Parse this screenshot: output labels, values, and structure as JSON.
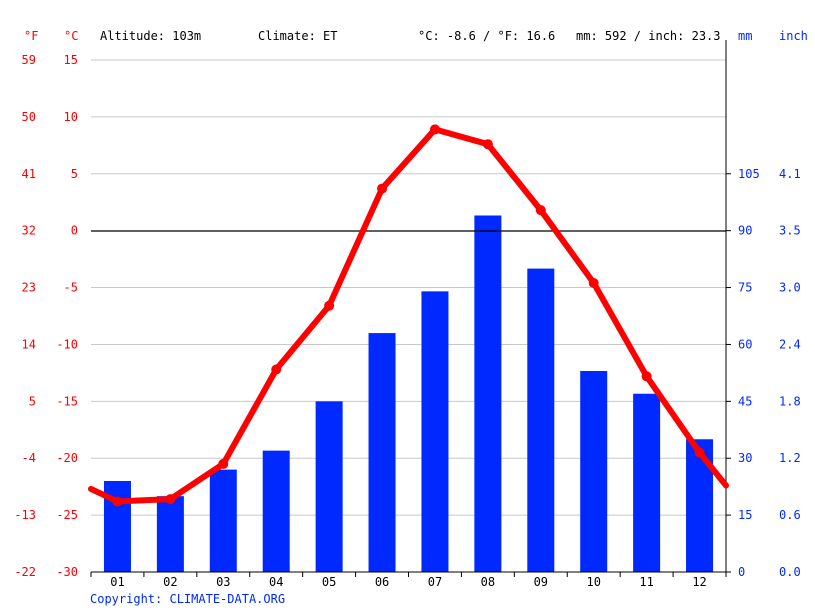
{
  "header": {
    "unit_f": "°F",
    "unit_c": "°C",
    "altitude": "Altitude: 103m",
    "climate": "Climate: ET",
    "avg_temp": "°C: -8.6 / °F: 16.6",
    "precip_total": "mm: 592 / inch: 23.3",
    "unit_mm": "mm",
    "unit_inch": "inch"
  },
  "footer": {
    "copyright": "Copyright: CLIMATE-DATA.ORG"
  },
  "colors": {
    "temp": "#ff0000",
    "precip": "#0029ff",
    "axis_precip_text": "#0029ff",
    "axis_temp_text": "#ff0000"
  },
  "chart_data": {
    "type": "bar+line",
    "categories": [
      "01",
      "02",
      "03",
      "04",
      "05",
      "06",
      "07",
      "08",
      "09",
      "10",
      "11",
      "12"
    ],
    "series": [
      {
        "values": [
          -23.8,
          -23.6,
          -20.5,
          -12.2,
          -6.6,
          3.7,
          8.9,
          7.6,
          1.8,
          -4.6,
          -12.8,
          -19.5
        ]
      },
      {
        "values": [
          24,
          20,
          27,
          32,
          45,
          63,
          74,
          94,
          80,
          53,
          47,
          35
        ]
      }
    ],
    "temp_c_line_ends": [
      -22.7,
      -22.4
    ],
    "ylim_c": [
      -30,
      15
    ],
    "ylim_mm": [
      0,
      135
    ],
    "ticks_c": [
      "15",
      "10",
      "5",
      "0",
      "-5",
      "-10",
      "-15",
      "-20",
      "-25",
      "-30"
    ],
    "ticks_f": [
      "59",
      "50",
      "41",
      "32",
      "23",
      "14",
      "5",
      "-4",
      "-13",
      "-22"
    ],
    "ticks_mm": [
      "105",
      "90",
      "75",
      "60",
      "45",
      "30",
      "15",
      "0"
    ],
    "ticks_inch": [
      "4.1",
      "3.5",
      "3.0",
      "2.4",
      "1.8",
      "1.2",
      "0.6",
      "0.0"
    ],
    "grid": true
  }
}
